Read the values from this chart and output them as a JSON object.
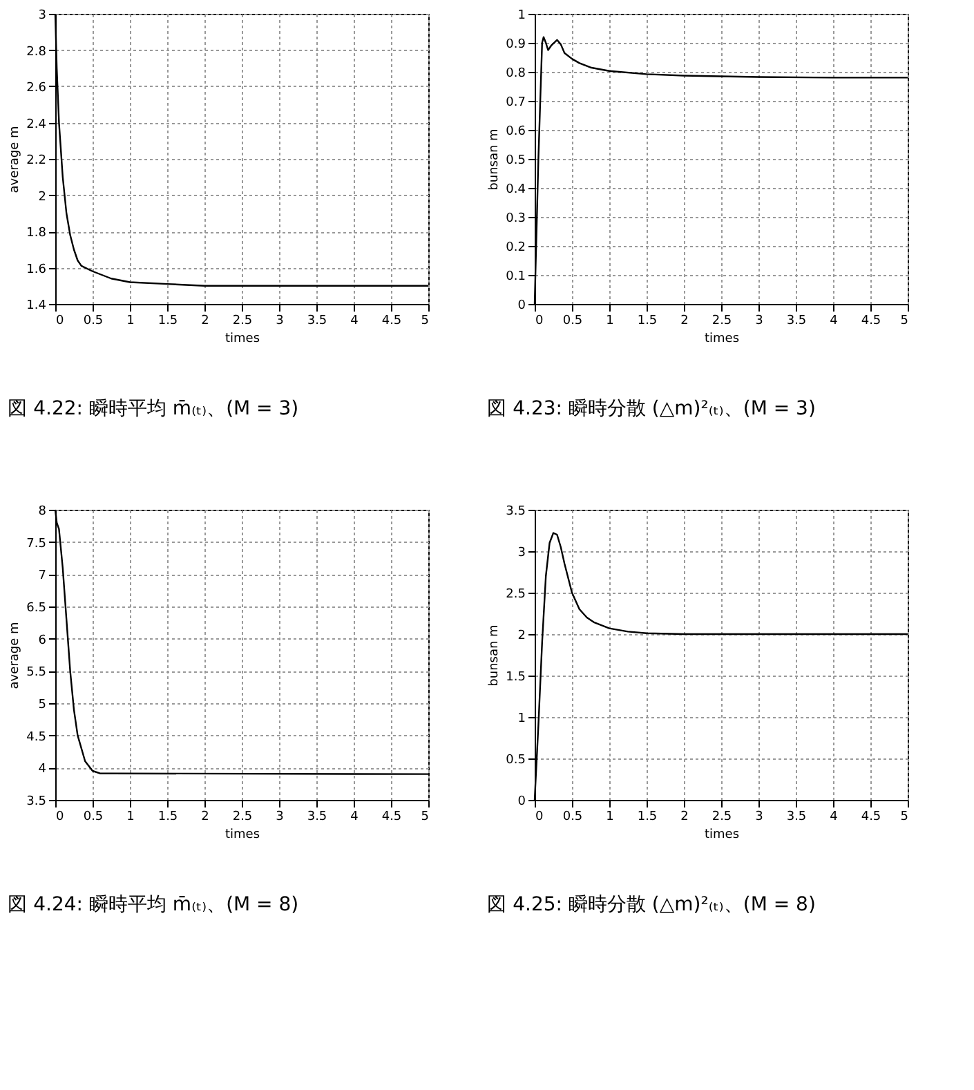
{
  "chart_data": [
    {
      "type": "line",
      "title": "図 4.22: 瞬時平均 m̄₍ₜ₎、(M = 3)",
      "xlabel": "times",
      "ylabel": "average m",
      "xlim": [
        0,
        5
      ],
      "xticks": [
        0,
        0.5,
        1,
        1.5,
        2,
        2.5,
        3,
        3.5,
        4,
        4.5,
        5
      ],
      "ylim": [
        1.4,
        3
      ],
      "yticks": [
        1.4,
        1.6,
        1.8,
        2,
        2.2,
        2.4,
        2.6,
        2.8,
        3
      ],
      "grid": true,
      "line_style": "solid",
      "marker": "none",
      "x": [
        0,
        0.02,
        0.05,
        0.1,
        0.15,
        0.2,
        0.25,
        0.3,
        0.35,
        0.5,
        0.75,
        1,
        1.5,
        2,
        2.5,
        3,
        5
      ],
      "series": [
        {
          "color": "#000000",
          "values": [
            3.0,
            2.7,
            2.4,
            2.1,
            1.9,
            1.78,
            1.7,
            1.64,
            1.61,
            1.58,
            1.54,
            1.52,
            1.51,
            1.5,
            1.5,
            1.5,
            1.5
          ]
        }
      ]
    },
    {
      "type": "line",
      "title": "図 4.23: 瞬時分散 (△m)²₍ₜ₎、(M = 3)",
      "xlabel": "times",
      "ylabel": "bunsan m",
      "xlim": [
        0,
        5
      ],
      "xticks": [
        0,
        0.5,
        1,
        1.5,
        2,
        2.5,
        3,
        3.5,
        4,
        4.5,
        5
      ],
      "ylim": [
        0,
        1
      ],
      "yticks": [
        0,
        0.1,
        0.2,
        0.3,
        0.4,
        0.5,
        0.6,
        0.7,
        0.8,
        0.9,
        1
      ],
      "grid": true,
      "line_style": "solid",
      "marker": "none",
      "x": [
        0,
        0.05,
        0.1,
        0.12,
        0.15,
        0.18,
        0.22,
        0.3,
        0.35,
        0.4,
        0.5,
        0.6,
        0.75,
        1,
        1.5,
        2,
        3,
        4,
        5
      ],
      "series": [
        {
          "color": "#000000",
          "values": [
            0,
            0.5,
            0.9,
            0.92,
            0.9,
            0.875,
            0.89,
            0.91,
            0.895,
            0.865,
            0.845,
            0.83,
            0.815,
            0.803,
            0.792,
            0.787,
            0.782,
            0.78,
            0.78
          ]
        }
      ]
    },
    {
      "type": "line",
      "title": "図 4.24: 瞬時平均 m̄₍ₜ₎、(M = 8)",
      "xlabel": "times",
      "ylabel": "average m",
      "xlim": [
        0,
        5
      ],
      "xticks": [
        0,
        0.5,
        1,
        1.5,
        2,
        2.5,
        3,
        3.5,
        4,
        4.5,
        5
      ],
      "ylim": [
        3.5,
        8
      ],
      "yticks": [
        3.5,
        4,
        4.5,
        5,
        5.5,
        6,
        6.5,
        7,
        7.5,
        8
      ],
      "grid": true,
      "line_style": "solid",
      "marker": "none",
      "x": [
        0,
        0.02,
        0.05,
        0.1,
        0.15,
        0.2,
        0.25,
        0.3,
        0.4,
        0.5,
        0.6,
        0.75,
        5
      ],
      "series": [
        {
          "color": "#000000",
          "values": [
            8,
            7.8,
            7.7,
            7.1,
            6.3,
            5.5,
            4.9,
            4.5,
            4.1,
            3.95,
            3.91,
            3.91,
            3.9
          ]
        }
      ]
    },
    {
      "type": "line",
      "title": "図 4.25: 瞬時分散 (△m)²₍ₜ₎、(M = 8)",
      "xlabel": "times",
      "ylabel": "bunsan m",
      "xlim": [
        0,
        5
      ],
      "xticks": [
        0,
        0.5,
        1,
        1.5,
        2,
        2.5,
        3,
        3.5,
        4,
        4.5,
        5
      ],
      "ylim": [
        0,
        3.5
      ],
      "yticks": [
        0,
        0.5,
        1,
        1.5,
        2,
        2.5,
        3,
        3.5
      ],
      "grid": true,
      "line_style": "solid",
      "marker": "none",
      "x": [
        0,
        0.05,
        0.1,
        0.15,
        0.2,
        0.25,
        0.3,
        0.35,
        0.4,
        0.5,
        0.6,
        0.7,
        0.8,
        1,
        1.25,
        1.5,
        2,
        5
      ],
      "series": [
        {
          "color": "#000000",
          "values": [
            0,
            0.9,
            1.9,
            2.7,
            3.1,
            3.22,
            3.2,
            3.05,
            2.85,
            2.5,
            2.3,
            2.2,
            2.14,
            2.07,
            2.03,
            2.01,
            2.0,
            2.0
          ]
        }
      ]
    }
  ]
}
